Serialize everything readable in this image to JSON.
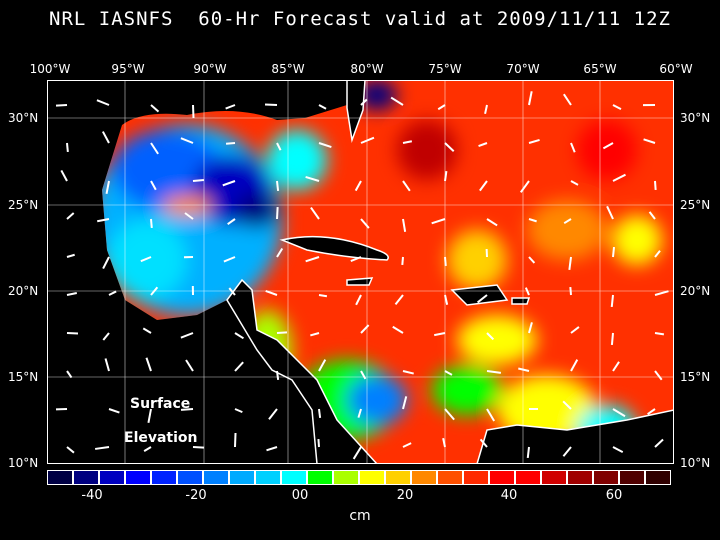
{
  "title": "NRL IASNFS  60-Hr Forecast valid at 2009/11/11 12Z",
  "lon_labels": [
    "100°W",
    "95°W",
    "90°W",
    "85°W",
    "80°W",
    "75°W",
    "70°W",
    "65°W",
    "60°W"
  ],
  "lat_labels": [
    "30°N",
    "25°N",
    "20°N",
    "15°N",
    "10°N"
  ],
  "map_label_line1": "Surface",
  "map_label_line2": "Elevation",
  "colorbar": {
    "unit": "cm",
    "tick_labels": [
      "-40",
      "-20",
      "00",
      "20",
      "40",
      "60"
    ],
    "colors": [
      "#000044",
      "#000080",
      "#0000c0",
      "#0000ff",
      "#0022ff",
      "#0050ff",
      "#0080ff",
      "#00aaff",
      "#00d0ff",
      "#00ffff",
      "#00ff00",
      "#aaff00",
      "#ffff00",
      "#ffd000",
      "#ff8800",
      "#ff5000",
      "#ff2a00",
      "#ff0000",
      "#ff0000",
      "#d00000",
      "#a00000",
      "#800000",
      "#500000",
      "#300000"
    ]
  }
}
